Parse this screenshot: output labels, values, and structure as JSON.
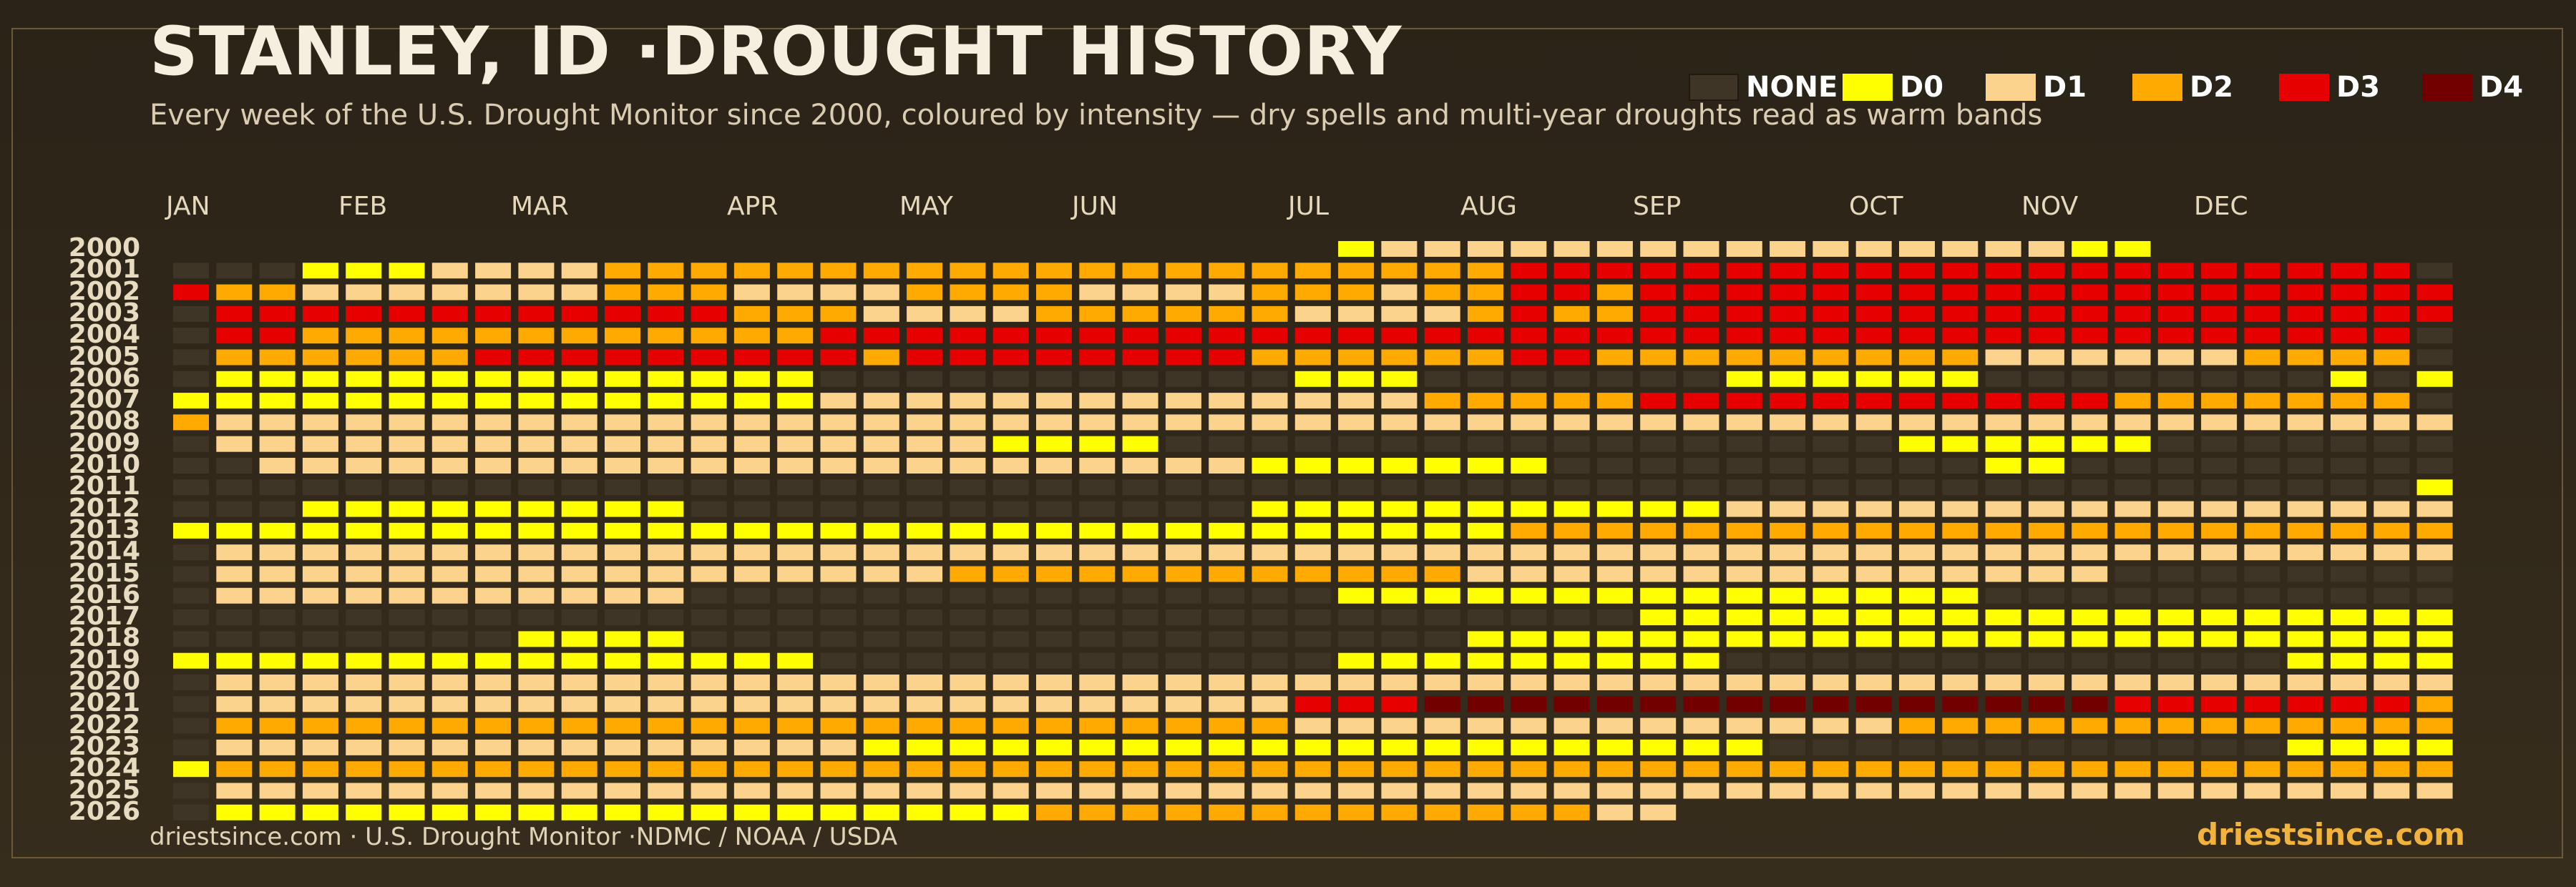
{
  "header": {
    "title": "STANLEY, ID ·DROUGHT HISTORY",
    "subtitle": "Every week of the U.S. Drought Monitor since 2000, coloured by intensity — dry spells and multi-year droughts read as warm bands"
  },
  "footer": {
    "source": "driestsince.com  · U.S. Drought Monitor ·NDMC / NOAA / USDA",
    "brand": "driestsince.com"
  },
  "chart_data": {
    "type": "heatmap",
    "title": "STANLEY, ID ·DROUGHT HISTORY",
    "x_axis": "week of year",
    "x_tick_labels": [
      "JAN",
      "FEB",
      "MAR",
      "APR",
      "MAY",
      "JUN",
      "JUL",
      "AUG",
      "SEP",
      "OCT",
      "NOV",
      "DEC"
    ],
    "x_tick_weeks": [
      1,
      5,
      9,
      14,
      18,
      22,
      27,
      31,
      35,
      40,
      44,
      48
    ],
    "weeks_per_year": 53,
    "years": [
      2000,
      2001,
      2002,
      2003,
      2004,
      2005,
      2006,
      2007,
      2008,
      2009,
      2010,
      2011,
      2012,
      2013,
      2014,
      2015,
      2016,
      2017,
      2018,
      2019,
      2020,
      2021,
      2022,
      2023,
      2024,
      2025,
      2026
    ],
    "legend": [
      {
        "level": -1,
        "label": "NONE",
        "color": "#3f3526"
      },
      {
        "level": 0,
        "label": "D0",
        "color": "#ffff00"
      },
      {
        "level": 1,
        "label": "D1",
        "color": "#fcd38c"
      },
      {
        "level": 2,
        "label": "D2",
        "color": "#ffaa00"
      },
      {
        "level": 3,
        "label": "D3",
        "color": "#e60000"
      },
      {
        "level": 4,
        "label": "D4",
        "color": "#730000"
      }
    ],
    "runs_format": "per year: list of [start_week, end_week, level]; weeks not listed are NONE; level -2 = no data",
    "runs": [
      [
        [
          1,
          27,
          -2
        ],
        [
          28,
          28,
          0
        ],
        [
          29,
          44,
          1
        ],
        [
          45,
          46,
          0
        ],
        [
          47,
          53,
          -2
        ]
      ],
      [
        [
          4,
          6,
          0
        ],
        [
          7,
          10,
          1
        ],
        [
          11,
          31,
          2
        ],
        [
          32,
          52,
          3
        ]
      ],
      [
        [
          1,
          1,
          3
        ],
        [
          2,
          3,
          2
        ],
        [
          4,
          10,
          1
        ],
        [
          11,
          13,
          2
        ],
        [
          14,
          17,
          1
        ],
        [
          18,
          21,
          2
        ],
        [
          22,
          25,
          1
        ],
        [
          26,
          28,
          2
        ],
        [
          29,
          29,
          1
        ],
        [
          30,
          31,
          2
        ],
        [
          32,
          33,
          3
        ],
        [
          34,
          34,
          2
        ],
        [
          35,
          53,
          3
        ]
      ],
      [
        [
          2,
          13,
          3
        ],
        [
          14,
          16,
          2
        ],
        [
          17,
          20,
          1
        ],
        [
          21,
          26,
          2
        ],
        [
          27,
          30,
          1
        ],
        [
          31,
          31,
          2
        ],
        [
          32,
          32,
          3
        ],
        [
          33,
          34,
          2
        ],
        [
          35,
          53,
          3
        ]
      ],
      [
        [
          2,
          3,
          3
        ],
        [
          4,
          15,
          2
        ],
        [
          16,
          52,
          3
        ]
      ],
      [
        [
          2,
          7,
          2
        ],
        [
          8,
          16,
          3
        ],
        [
          17,
          17,
          2
        ],
        [
          18,
          25,
          3
        ],
        [
          26,
          31,
          2
        ],
        [
          32,
          33,
          3
        ],
        [
          34,
          42,
          2
        ],
        [
          43,
          43,
          1
        ],
        [
          44,
          48,
          1
        ],
        [
          49,
          52,
          2
        ]
      ],
      [
        [
          2,
          3,
          0
        ],
        [
          4,
          15,
          0
        ],
        [
          27,
          29,
          0
        ],
        [
          37,
          42,
          0
        ],
        [
          51,
          51,
          0
        ],
        [
          53,
          53,
          0
        ]
      ],
      [
        [
          1,
          9,
          0
        ],
        [
          10,
          15,
          0
        ],
        [
          16,
          23,
          1
        ],
        [
          24,
          29,
          1
        ],
        [
          30,
          31,
          2
        ],
        [
          32,
          34,
          2
        ],
        [
          35,
          45,
          3
        ],
        [
          46,
          52,
          2
        ]
      ],
      [
        [
          1,
          1,
          2
        ],
        [
          2,
          53,
          1
        ]
      ],
      [
        [
          2,
          11,
          1
        ],
        [
          12,
          19,
          1
        ],
        [
          20,
          23,
          0
        ],
        [
          41,
          42,
          0
        ],
        [
          43,
          45,
          0
        ],
        [
          46,
          46,
          0
        ]
      ],
      [
        [
          3,
          11,
          1
        ],
        [
          12,
          25,
          1
        ],
        [
          26,
          32,
          0
        ],
        [
          43,
          44,
          0
        ]
      ],
      [
        [
          53,
          53,
          0
        ]
      ],
      [
        [
          4,
          12,
          0
        ],
        [
          26,
          36,
          0
        ],
        [
          37,
          53,
          1
        ]
      ],
      [
        [
          1,
          31,
          0
        ],
        [
          32,
          53,
          2
        ]
      ],
      [
        [
          2,
          18,
          1
        ],
        [
          19,
          36,
          1
        ],
        [
          37,
          53,
          1
        ]
      ],
      [
        [
          2,
          18,
          1
        ],
        [
          19,
          30,
          2
        ],
        [
          31,
          45,
          1
        ]
      ],
      [
        [
          2,
          12,
          1
        ],
        [
          28,
          35,
          0
        ],
        [
          36,
          42,
          0
        ]
      ],
      [
        [
          35,
          53,
          0
        ]
      ],
      [
        [
          9,
          12,
          0
        ],
        [
          31,
          53,
          0
        ]
      ],
      [
        [
          1,
          9,
          0
        ],
        [
          10,
          15,
          0
        ],
        [
          28,
          32,
          0
        ],
        [
          33,
          36,
          0
        ],
        [
          50,
          53,
          0
        ]
      ],
      [
        [
          2,
          53,
          1
        ]
      ],
      [
        [
          2,
          10,
          1
        ],
        [
          11,
          26,
          1
        ],
        [
          27,
          29,
          3
        ],
        [
          30,
          45,
          4
        ],
        [
          46,
          52,
          3
        ],
        [
          53,
          53,
          2
        ]
      ],
      [
        [
          2,
          10,
          2
        ],
        [
          11,
          26,
          2
        ],
        [
          27,
          40,
          1
        ],
        [
          41,
          53,
          2
        ]
      ],
      [
        [
          2,
          16,
          1
        ],
        [
          17,
          37,
          0
        ],
        [
          50,
          53,
          0
        ]
      ],
      [
        [
          1,
          1,
          0
        ],
        [
          2,
          53,
          2
        ]
      ],
      [
        [
          2,
          53,
          1
        ]
      ],
      [
        [
          2,
          5,
          0
        ],
        [
          6,
          20,
          0
        ],
        [
          21,
          26,
          2
        ],
        [
          27,
          33,
          2
        ],
        [
          34,
          34,
          1
        ],
        [
          35,
          35,
          1
        ],
        [
          36,
          53,
          -2
        ]
      ]
    ]
  }
}
